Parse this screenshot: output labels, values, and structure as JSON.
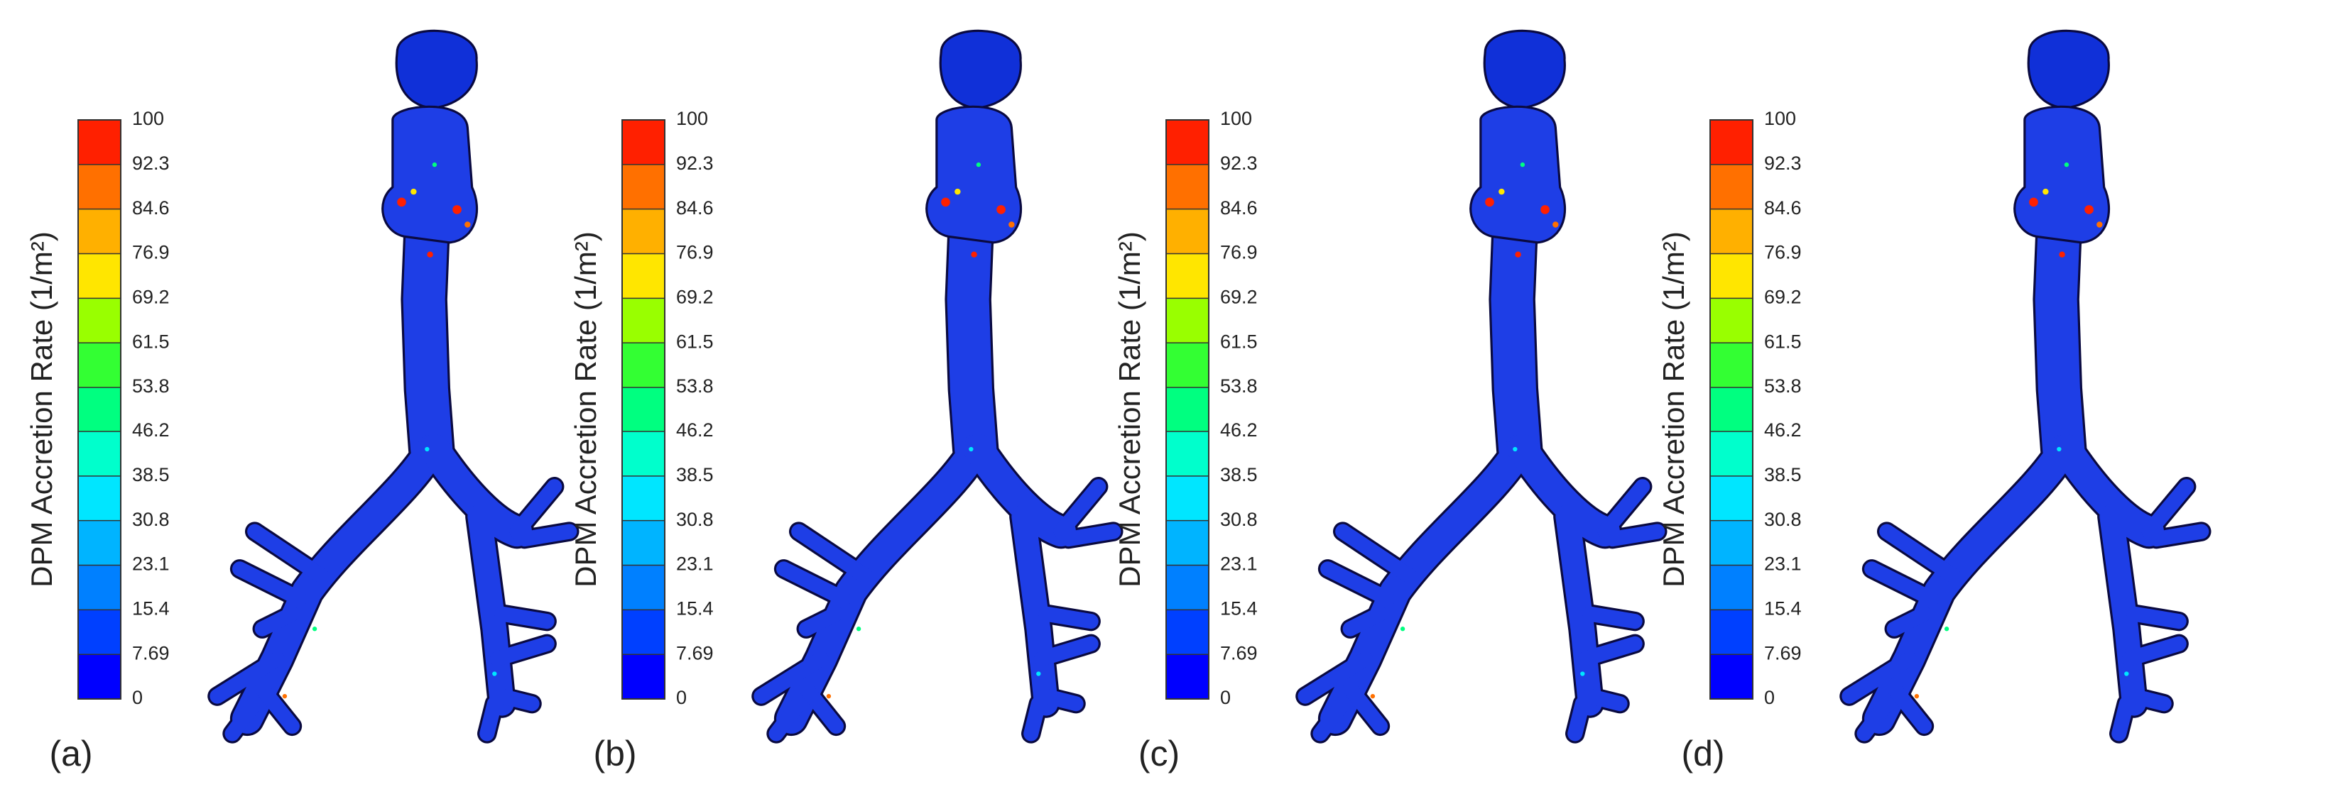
{
  "colorbar": {
    "label": "DPM Accretion Rate (1/m²)",
    "ticks": [
      100,
      92.3,
      84.6,
      76.9,
      69.2,
      61.5,
      53.8,
      46.2,
      38.5,
      30.8,
      23.1,
      15.4,
      7.69,
      0
    ],
    "colors": [
      "#0000ff",
      "#0040ff",
      "#0080ff",
      "#00b4ff",
      "#00e6ff",
      "#00ffcc",
      "#00ff80",
      "#33ff33",
      "#99ff00",
      "#ffe600",
      "#ffb000",
      "#ff7000",
      "#ff2000"
    ]
  },
  "panels": [
    {
      "label": "(a)"
    },
    {
      "label": "(b)"
    },
    {
      "label": "(c)"
    },
    {
      "label": "(d)"
    }
  ]
}
